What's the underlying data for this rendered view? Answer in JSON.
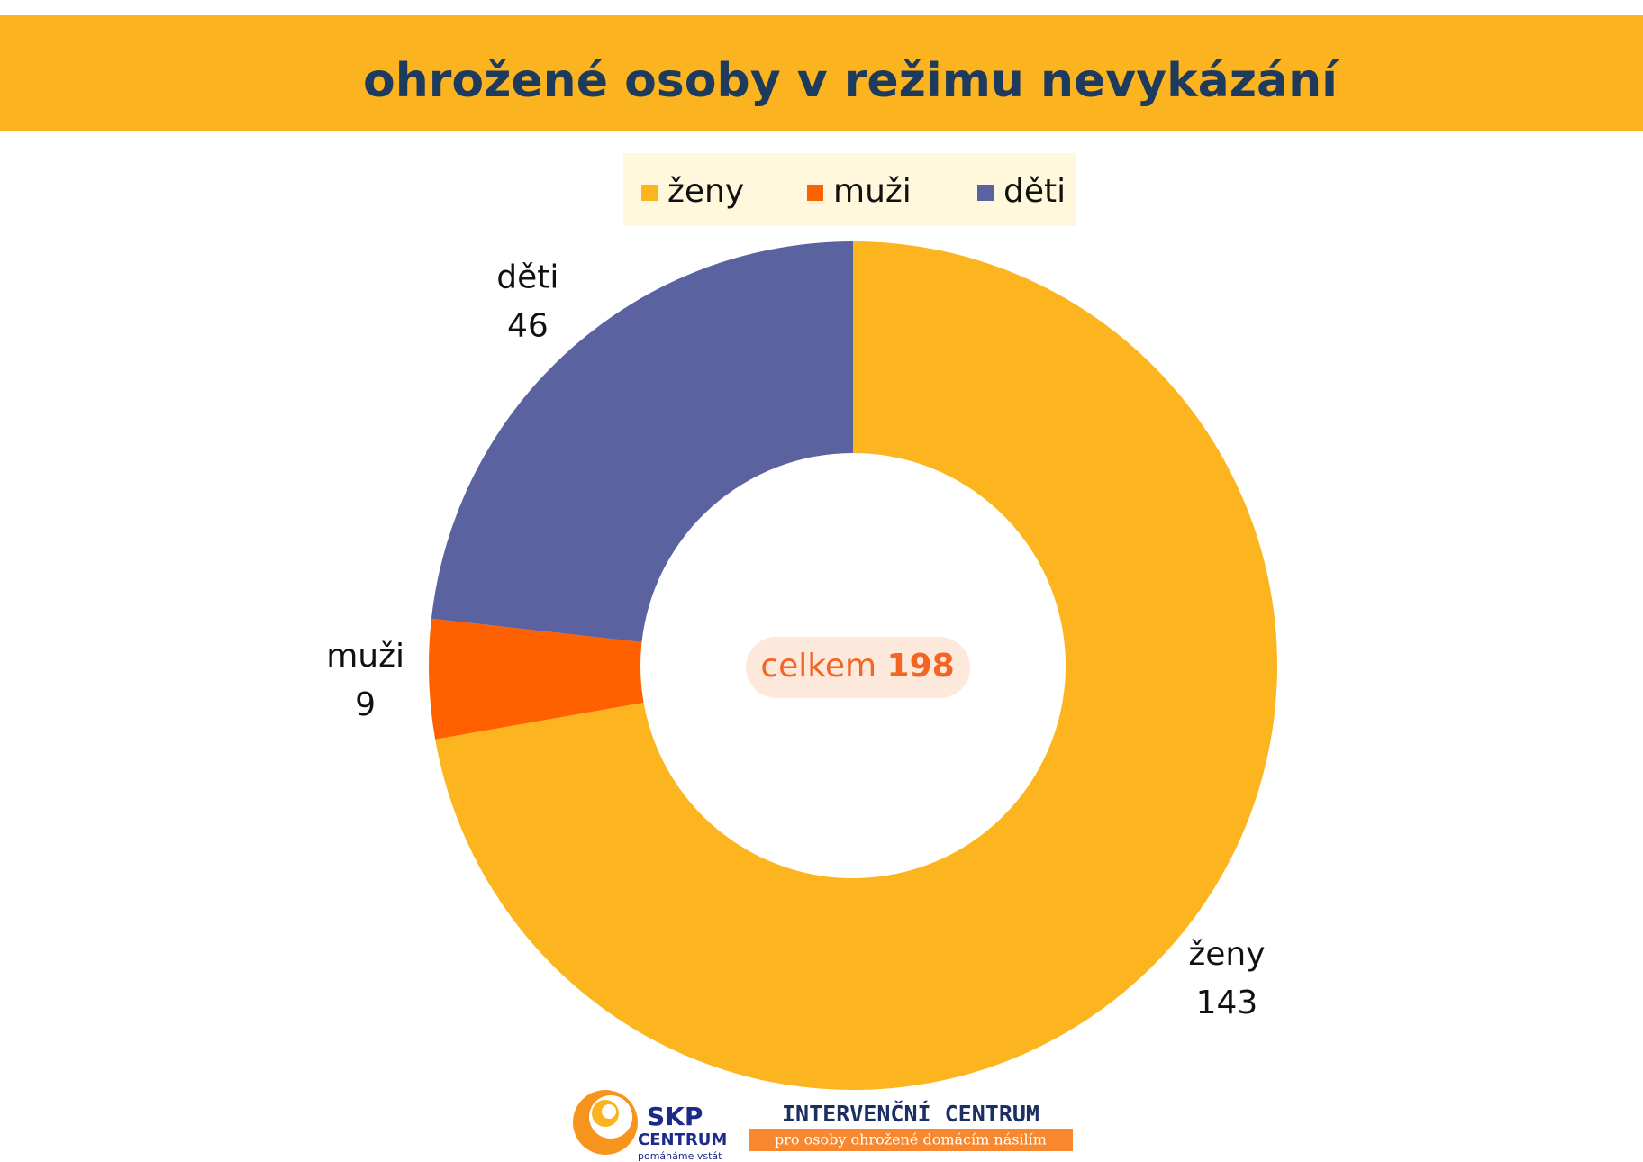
{
  "chart_data": {
    "type": "donut",
    "title": "ohrožené osoby v režimu nevykázání",
    "categories": [
      "ženy",
      "muži",
      "děti"
    ],
    "values": [
      143,
      9,
      46
    ],
    "colors": [
      "#fdb51f",
      "#ff6100",
      "#5a62a0"
    ],
    "legend": "top",
    "center_label": {
      "text": "celkem",
      "value": 198
    }
  },
  "footer": {
    "logo_left": {
      "name": "SKP",
      "sub": "CENTRUM",
      "slogan": "pomáháme vstát"
    },
    "logo_right": {
      "name": "INTERVENČNÍ CENTRUM",
      "sub": "pro osoby ohrožené domácím násilím"
    }
  }
}
